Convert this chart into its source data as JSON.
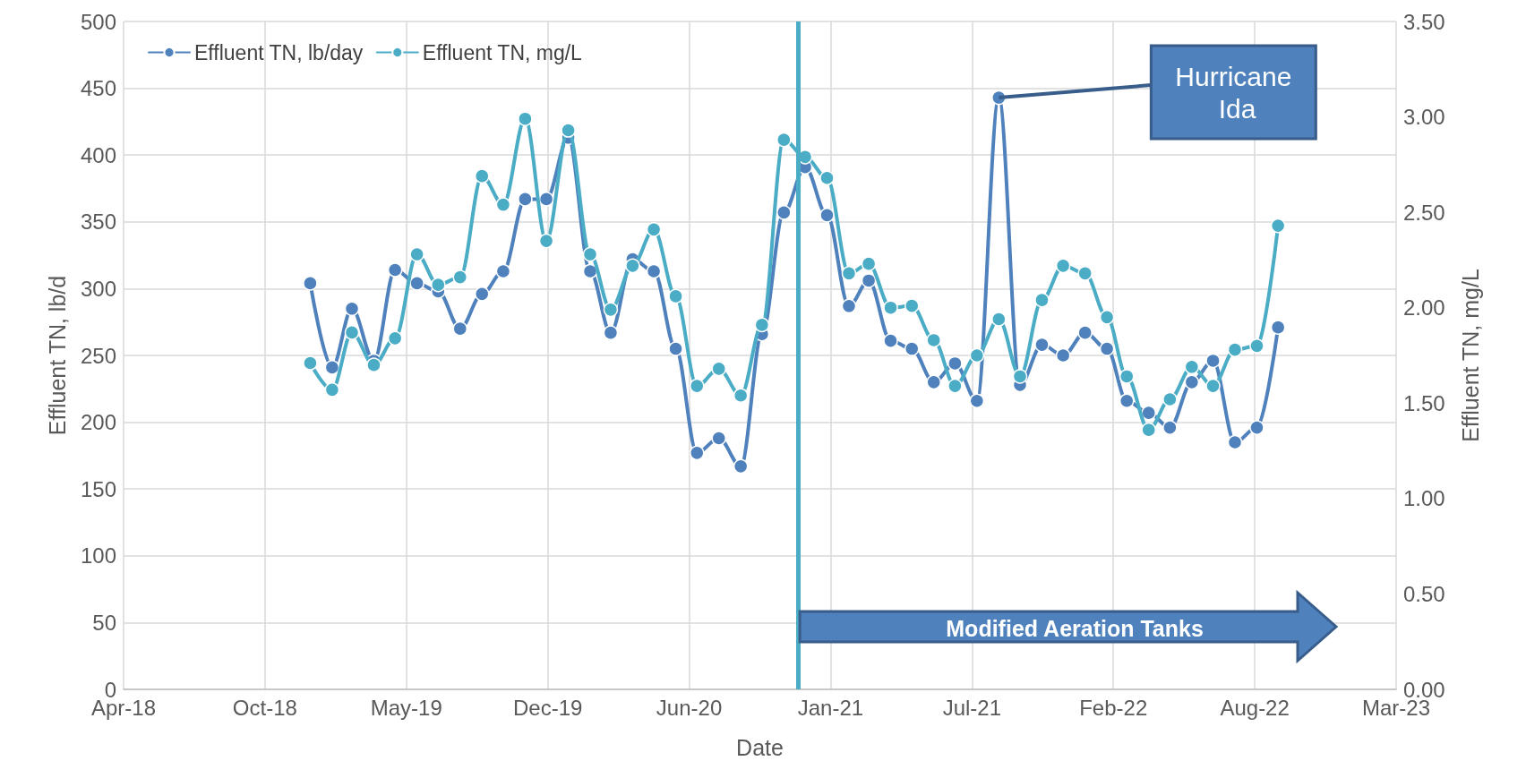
{
  "chart_data": {
    "type": "line",
    "xlabel": "Date",
    "ylabel": "Effluent TN, lb/d",
    "y2label": "Effluent TN, mg/L",
    "x": [
      "2019-01",
      "2019-02",
      "2019-03",
      "2019-04",
      "2019-05",
      "2019-06",
      "2019-07",
      "2019-08",
      "2019-09",
      "2019-10",
      "2019-11",
      "2019-12",
      "2020-01",
      "2020-02",
      "2020-03",
      "2020-04",
      "2020-05",
      "2020-06",
      "2020-07",
      "2020-08",
      "2020-09",
      "2020-10",
      "2020-11",
      "2020-12",
      "2021-01",
      "2021-02",
      "2021-03",
      "2021-04",
      "2021-05",
      "2021-06",
      "2021-07",
      "2021-08",
      "2021-09",
      "2021-10",
      "2021-11",
      "2021-12",
      "2022-01",
      "2022-02",
      "2022-03",
      "2022-04",
      "2022-05",
      "2022-06",
      "2022-07",
      "2022-08",
      "2022-09",
      "2022-10"
    ],
    "series": [
      {
        "name": "Effluent TN, lb/day",
        "color": "#4f81bd",
        "values": [
          304,
          241,
          285,
          246,
          314,
          304,
          298,
          270,
          296,
          313,
          367,
          367,
          413,
          313,
          267,
          322,
          313,
          255,
          177,
          188,
          167,
          266,
          357,
          391,
          355,
          287,
          306,
          261,
          255,
          230,
          244,
          216,
          443,
          228,
          258,
          250,
          267,
          255,
          216,
          207,
          196,
          230,
          246,
          185,
          196,
          271
        ]
      },
      {
        "name": "Effluent TN, mg/L",
        "color": "#4bacc6",
        "axis": "y2",
        "values": [
          1.71,
          1.57,
          1.87,
          1.7,
          1.84,
          2.28,
          2.12,
          2.16,
          2.69,
          2.54,
          2.99,
          2.35,
          2.93,
          2.28,
          1.99,
          2.22,
          2.41,
          2.06,
          1.59,
          1.68,
          1.54,
          1.91,
          2.88,
          2.79,
          2.68,
          2.18,
          2.23,
          2.0,
          2.01,
          1.83,
          1.59,
          1.75,
          1.94,
          1.64,
          2.04,
          2.22,
          2.18,
          1.95,
          1.64,
          1.36,
          1.52,
          1.69,
          1.59,
          1.78,
          1.8,
          2.43
        ]
      }
    ],
    "xlim": [
      "2018-04-12",
      "2023-03-17"
    ],
    "xticks": [
      {
        "value": "2018-04-12",
        "label": "Apr-18"
      },
      {
        "value": "2018-10-29",
        "label": "Oct-18"
      },
      {
        "value": "2019-05-17",
        "label": "May-19"
      },
      {
        "value": "2019-12-03",
        "label": "Dec-19"
      },
      {
        "value": "2020-06-20",
        "label": "Jun-20"
      },
      {
        "value": "2021-01-06",
        "label": "Jan-21"
      },
      {
        "value": "2021-07-25",
        "label": "Jul-21"
      },
      {
        "value": "2022-02-10",
        "label": "Feb-22"
      },
      {
        "value": "2022-08-29",
        "label": "Aug-22"
      },
      {
        "value": "2023-03-17",
        "label": "Mar-23"
      }
    ],
    "ylim": [
      0,
      500
    ],
    "yticks": [
      0,
      50,
      100,
      150,
      200,
      250,
      300,
      350,
      400,
      450,
      500
    ],
    "y2lim": [
      0,
      3.5
    ],
    "y2ticks": [
      {
        "value": 0,
        "label": "0.00"
      },
      {
        "value": 0.5,
        "label": "0.50"
      },
      {
        "value": 1,
        "label": "1.00"
      },
      {
        "value": 1.5,
        "label": "1.50"
      },
      {
        "value": 2,
        "label": "2.00"
      },
      {
        "value": 2.5,
        "label": "2.50"
      },
      {
        "value": 3,
        "label": "3.00"
      },
      {
        "value": 3.5,
        "label": "3.50"
      }
    ],
    "grid": true,
    "legend": "top left",
    "marker": "circle",
    "line_style": "solid",
    "ref_lines": [
      {
        "axis": "x",
        "value": "2020-11-21",
        "color": "#4bacc6"
      }
    ],
    "annotations": [
      {
        "text": "Hurricane Ida",
        "x": "2021-09",
        "y": 443
      },
      "Modified Aeration Tanks"
    ]
  }
}
